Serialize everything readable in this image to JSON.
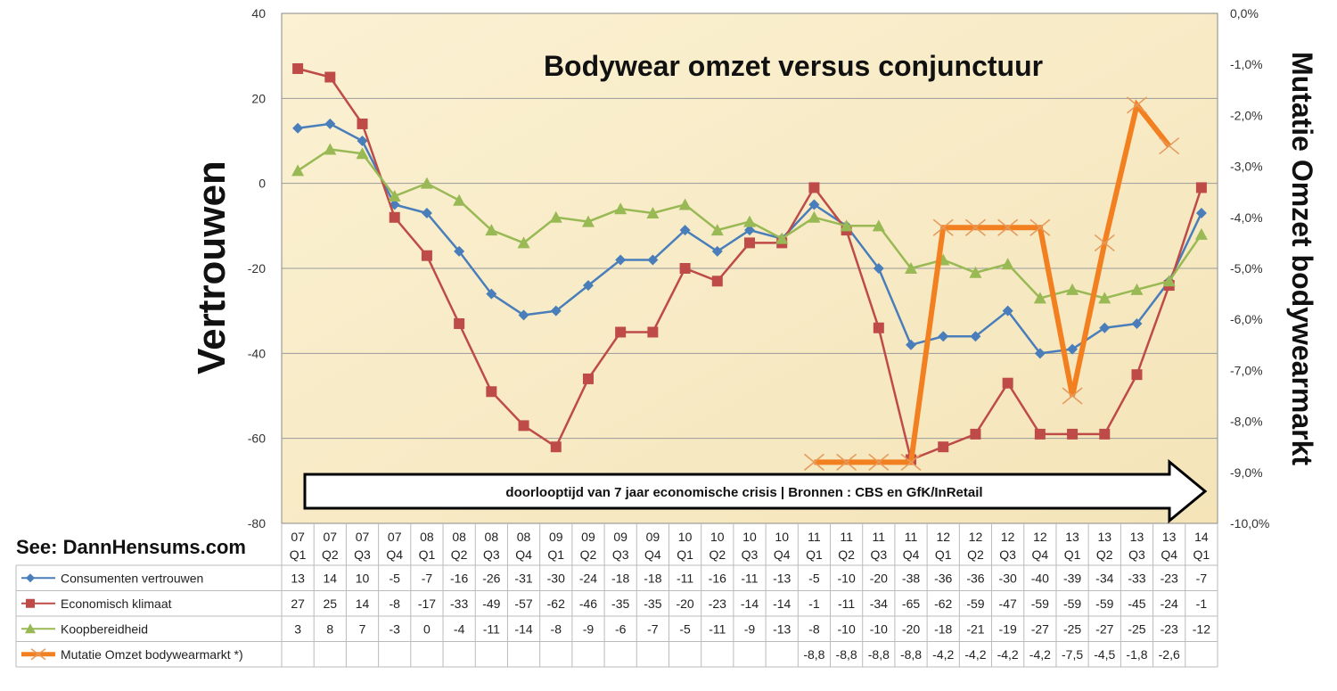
{
  "chart_data": {
    "type": "line",
    "title": "Bodywear omzet versus conjunctuur",
    "ylabel_left": "Vertrouwen",
    "ylabel_right": "Mutatie Omzet bodywearmarkt",
    "ylim_left": [
      -80,
      40
    ],
    "yticks_left": [
      "40",
      "20",
      "0",
      "-20",
      "-40",
      "-60",
      "-80"
    ],
    "ylim_right": [
      -10.0,
      0.0
    ],
    "yticks_right": [
      "0,0%",
      "-1,0%",
      "-2,0%",
      "-3,0%",
      "-4,0%",
      "-5,0%",
      "-6,0%",
      "-7,0%",
      "-8,0%",
      "-9,0%",
      "-10,0%"
    ],
    "categories": [
      {
        "year": "07",
        "q": "Q1"
      },
      {
        "year": "07",
        "q": "Q2"
      },
      {
        "year": "07",
        "q": "Q3"
      },
      {
        "year": "07",
        "q": "Q4"
      },
      {
        "year": "08",
        "q": "Q1"
      },
      {
        "year": "08",
        "q": "Q2"
      },
      {
        "year": "08",
        "q": "Q3"
      },
      {
        "year": "08",
        "q": "Q4"
      },
      {
        "year": "09",
        "q": "Q1"
      },
      {
        "year": "09",
        "q": "Q2"
      },
      {
        "year": "09",
        "q": "Q3"
      },
      {
        "year": "09",
        "q": "Q4"
      },
      {
        "year": "10",
        "q": "Q1"
      },
      {
        "year": "10",
        "q": "Q2"
      },
      {
        "year": "10",
        "q": "Q3"
      },
      {
        "year": "10",
        "q": "Q4"
      },
      {
        "year": "11",
        "q": "Q1"
      },
      {
        "year": "11",
        "q": "Q2"
      },
      {
        "year": "11",
        "q": "Q3"
      },
      {
        "year": "11",
        "q": "Q4"
      },
      {
        "year": "12",
        "q": "Q1"
      },
      {
        "year": "12",
        "q": "Q2"
      },
      {
        "year": "12",
        "q": "Q3"
      },
      {
        "year": "12",
        "q": "Q4"
      },
      {
        "year": "13",
        "q": "Q1"
      },
      {
        "year": "13",
        "q": "Q2"
      },
      {
        "year": "13",
        "q": "Q3"
      },
      {
        "year": "13",
        "q": "Q4"
      },
      {
        "year": "14",
        "q": "Q1"
      }
    ],
    "series": [
      {
        "name": "Consumenten vertrouwen",
        "axis": "left",
        "color": "#4a7ebb",
        "marker": "diamond",
        "values": [
          13,
          14,
          10,
          -5,
          -7,
          -16,
          -26,
          -31,
          -30,
          -24,
          -18,
          -18,
          -11,
          -16,
          -11,
          -13,
          -5,
          -10,
          -20,
          -38,
          -36,
          -36,
          -30,
          -40,
          -39,
          -34,
          -33,
          -23,
          -7
        ],
        "labels": [
          "13",
          "14",
          "10",
          "-5",
          "-7",
          "-16",
          "-26",
          "-31",
          "-30",
          "-24",
          "-18",
          "-18",
          "-11",
          "-16",
          "-11",
          "-13",
          "-5",
          "-10",
          "-20",
          "-38",
          "-36",
          "-36",
          "-30",
          "-40",
          "-39",
          "-34",
          "-33",
          "-23",
          "-7"
        ]
      },
      {
        "name": "Economisch klimaat",
        "axis": "left",
        "color": "#be4b48",
        "marker": "square",
        "values": [
          27,
          25,
          14,
          -8,
          -17,
          -33,
          -49,
          -57,
          -62,
          -46,
          -35,
          -35,
          -20,
          -23,
          -14,
          -14,
          -1,
          -11,
          -34,
          -65,
          -62,
          -59,
          -47,
          -59,
          -59,
          -59,
          -45,
          -24,
          -1
        ],
        "labels": [
          "27",
          "25",
          "14",
          "-8",
          "-17",
          "-33",
          "-49",
          "-57",
          "-62",
          "-46",
          "-35",
          "-35",
          "-20",
          "-23",
          "-14",
          "-14",
          "-1",
          "-11",
          "-34",
          "-65",
          "-62",
          "-59",
          "-47",
          "-59",
          "-59",
          "-59",
          "-45",
          "-24",
          "-1"
        ]
      },
      {
        "name": "Koopbereidheid",
        "axis": "left",
        "color": "#98b954",
        "marker": "triangle",
        "values": [
          3,
          8,
          7,
          -3,
          0,
          -4,
          -11,
          -14,
          -8,
          -9,
          -6,
          -7,
          -5,
          -11,
          -9,
          -13,
          -8,
          -10,
          -10,
          -20,
          -18,
          -21,
          -19,
          -27,
          -25,
          -27,
          -25,
          -23,
          -12
        ],
        "labels": [
          "3",
          "8",
          "7",
          "-3",
          "0",
          "-4",
          "-11",
          "-14",
          "-8",
          "-9",
          "-6",
          "-7",
          "-5",
          "-11",
          "-9",
          "-13",
          "-8",
          "-10",
          "-10",
          "-20",
          "-18",
          "-21",
          "-19",
          "-27",
          "-25",
          "-27",
          "-25",
          "-23",
          "-12"
        ]
      },
      {
        "name": "Mutatie Omzet bodywearmarkt *)",
        "axis": "right",
        "color": "#f38020",
        "marker": "x",
        "values": [
          null,
          null,
          null,
          null,
          null,
          null,
          null,
          null,
          null,
          null,
          null,
          null,
          null,
          null,
          null,
          null,
          -8.8,
          -8.8,
          -8.8,
          -8.8,
          -4.2,
          -4.2,
          -4.2,
          -4.2,
          -7.5,
          -4.5,
          -1.8,
          -2.6,
          null
        ],
        "labels": [
          "",
          "",
          "",
          "",
          "",
          "",
          "",
          "",
          "",
          "",
          "",
          "",
          "",
          "",
          "",
          "",
          "-8,8",
          "-8,8",
          "-8,8",
          "-8,8",
          "-4,2",
          "-4,2",
          "-4,2",
          "-4,2",
          "-7,5",
          "-4,5",
          "-1,8",
          "-2,6",
          ""
        ]
      }
    ],
    "annotation": "doorlooptijd van 7 jaar economische crisis | Bronnen : CBS en GfK/InRetail"
  },
  "site_label": "See: DannHensums.com"
}
